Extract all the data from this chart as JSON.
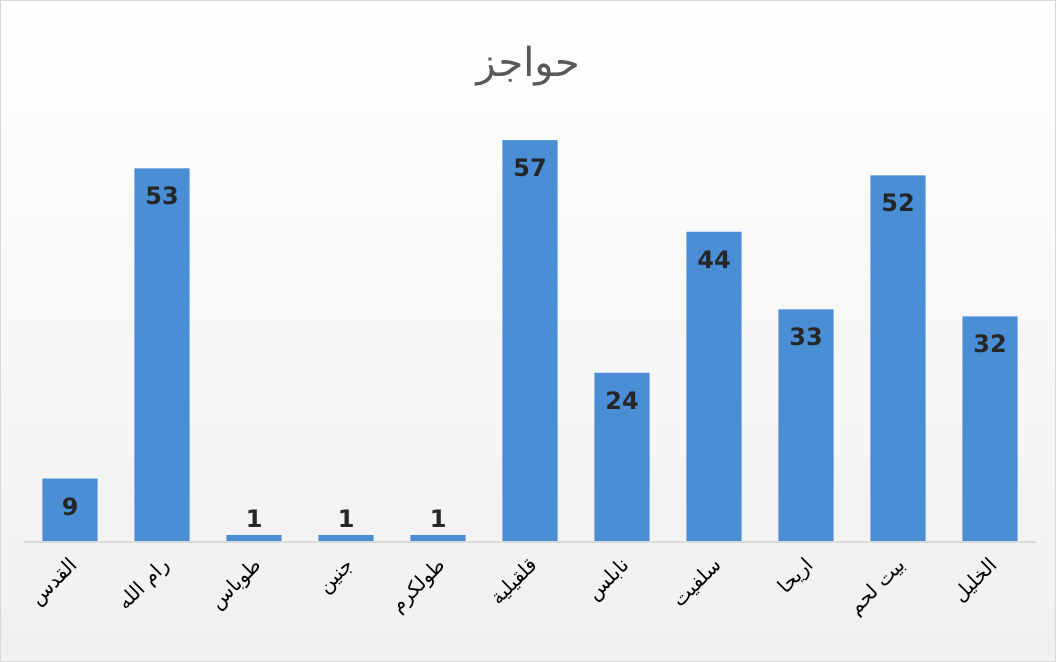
{
  "chart_data": {
    "type": "bar",
    "title": "حواجز",
    "categories": [
      "القدس",
      "رام الله",
      "طوباس",
      "جنين",
      "طولكرم",
      "قلقيلية",
      "نابلس",
      "سلفيت",
      "اريحا",
      "بيت لحم",
      "الخليل"
    ],
    "values": [
      9,
      53,
      1,
      1,
      1,
      57,
      24,
      44,
      33,
      52,
      32
    ],
    "color": "#4a8fd6",
    "data_labels": true
  }
}
